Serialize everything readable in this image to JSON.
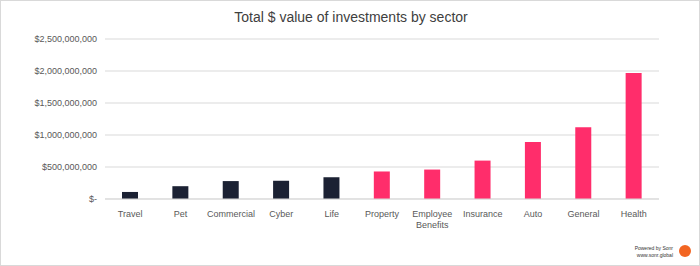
{
  "chart_data": {
    "type": "bar",
    "title": "Total $ value of investments by sector",
    "categories": [
      "Travel",
      "Pet",
      "Commercial",
      "Cyber",
      "Life",
      "Property",
      "Employee Benefits",
      "Insurance",
      "Auto",
      "General",
      "Health"
    ],
    "values": [
      110000000,
      200000000,
      280000000,
      285000000,
      340000000,
      430000000,
      460000000,
      600000000,
      890000000,
      1120000000,
      1970000000
    ],
    "colors": [
      "#1b2133",
      "#1b2133",
      "#1b2133",
      "#1b2133",
      "#1b2133",
      "#ff2d6b",
      "#ff2d6b",
      "#ff2d6b",
      "#ff2d6b",
      "#ff2d6b",
      "#ff2d6b"
    ],
    "ylim": [
      0,
      2500000000
    ],
    "yticks": [
      {
        "value": 0,
        "label": "$-"
      },
      {
        "value": 500000000,
        "label": "$500,000,000"
      },
      {
        "value": 1000000000,
        "label": "$1,000,000,000"
      },
      {
        "value": 1500000000,
        "label": "$1,500,000,000"
      },
      {
        "value": 2000000000,
        "label": "$2,000,000,000"
      },
      {
        "value": 2500000000,
        "label": "$2,500,000,000"
      }
    ],
    "grid": true,
    "footnote": [
      "Powered by Sonr",
      "www.sonr.global"
    ]
  }
}
